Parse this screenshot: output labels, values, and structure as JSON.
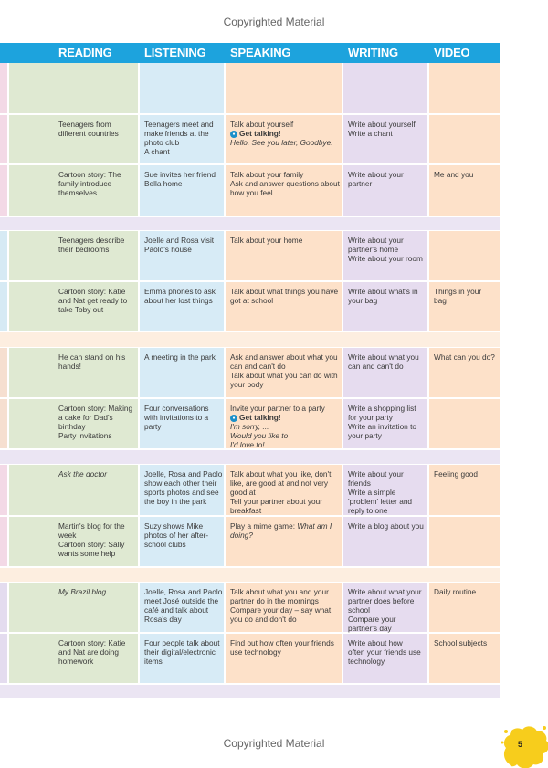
{
  "watermark": "Copyrighted Material",
  "headers": [
    "READING",
    "LISTENING",
    "SPEAKING",
    "WRITING",
    "VIDEO"
  ],
  "page_number": "5",
  "colors": {
    "header": "#1da3dd",
    "reading": "#dfe9d2",
    "listening": "#d7ebf6",
    "speaking": "#fde1c9",
    "writing": "#e6dcef",
    "video": "#fde1c9",
    "separator_lavender": "#ebe5f3",
    "separator_peach": "#fdeee0",
    "badge": "#f7cd1c"
  },
  "rows": [
    {
      "reading": [],
      "listening": [],
      "speaking": [],
      "writing": [],
      "video": []
    },
    {
      "reading": [
        "Teenagers from",
        "different countries"
      ],
      "listening": [
        "Teenagers meet and",
        "make friends at the",
        "photo club",
        "A chant"
      ],
      "speaking": [
        "Talk about yourself"
      ],
      "speaking_gt": "Get talking!",
      "speaking_gt_line": "Hello, See you later, Goodbye.",
      "writing": [
        "Write about yourself",
        "Write a chant"
      ],
      "video": []
    },
    {
      "reading": [
        "Cartoon story: The",
        "family introduce",
        "themselves"
      ],
      "listening": [
        "Sue invites her friend",
        "Bella home"
      ],
      "speaking": [
        "Talk about your family",
        "Ask and answer questions about",
        "how you feel"
      ],
      "writing": [
        "Write about your",
        "partner"
      ],
      "video": [
        "Me and you"
      ]
    },
    {
      "reading": [
        "Teenagers describe",
        "their bedrooms"
      ],
      "listening": [
        "Joelle and Rosa visit",
        "Paolo's house"
      ],
      "speaking": [
        "Talk about your home"
      ],
      "writing": [
        "Write about your",
        "partner's home",
        "Write about your room"
      ],
      "video": []
    },
    {
      "reading": [
        "Cartoon story: Katie",
        "and Nat get ready to",
        "take Toby out"
      ],
      "listening": [
        "Emma phones to ask",
        "about her lost things"
      ],
      "speaking": [
        "Talk about what things you have",
        "got at school"
      ],
      "writing": [
        "Write about what's in",
        "your bag"
      ],
      "video": [
        "Things in your",
        "bag"
      ]
    },
    {
      "reading": [
        "He can stand on his",
        "hands!"
      ],
      "listening": [
        "A meeting in the park"
      ],
      "speaking": [
        "Ask and answer about what you",
        "can and can't do",
        "Talk about what you can do with",
        "your body"
      ],
      "writing": [
        "Write about what you",
        "can and can't do"
      ],
      "video": [
        "What can you do?"
      ]
    },
    {
      "reading": [
        "Cartoon story: Making",
        "a cake for Dad's",
        "birthday",
        "Party invitations"
      ],
      "listening": [
        "Four conversations",
        "with invitations to a",
        "party"
      ],
      "speaking": [
        "Invite your partner to a party"
      ],
      "speaking_gt": "Get talking!",
      "speaking_gt_lines": [
        "I'm sorry, ...",
        "Would you like to",
        "I'd love to!"
      ],
      "writing": [
        "Write a shopping list",
        "for your party",
        "Write an invitation to",
        "your party"
      ],
      "video": []
    },
    {
      "reading_italic": [
        "Ask the doctor"
      ],
      "listening": [
        "Joelle, Rosa and Paolo",
        "show each other their",
        "sports photos and see",
        "the boy in the park"
      ],
      "speaking": [
        "Talk about what you like, don't",
        "like, are good at and not very",
        "good at",
        "Tell your partner about your",
        "breakfast"
      ],
      "writing": [
        "Write about your",
        "friends",
        "Write a simple",
        "'problem' letter and",
        "reply to one"
      ],
      "video": [
        "Feeling good"
      ]
    },
    {
      "reading": [
        "Martin's blog for the",
        "week",
        "Cartoon story: Sally",
        "wants some help"
      ],
      "listening": [
        "Suzy shows Mike",
        "photos of her after-",
        "school clubs"
      ],
      "speaking_prefix": "Play a mime game: ",
      "speaking_italic_tail": "What am I",
      "speaking_italic": [
        "doing?"
      ],
      "writing": [
        "Write a blog about you"
      ],
      "video": []
    },
    {
      "reading_italic": [
        "My Brazil blog"
      ],
      "listening": [
        "Joelle, Rosa and Paolo",
        "meet José outside the",
        "café and talk about",
        "Rosa's day"
      ],
      "speaking": [
        "Talk about what you and your",
        "partner do in the mornings",
        "Compare your day – say what",
        "you do and don't do"
      ],
      "writing": [
        "Write about what your",
        "partner does before",
        "school",
        "Compare your",
        "partner's day"
      ],
      "video": [
        "Daily routine"
      ]
    },
    {
      "reading": [
        "Cartoon story: Katie",
        "and Nat are doing",
        "homework"
      ],
      "listening": [
        "Four people talk about",
        "their digital/electronic",
        "items"
      ],
      "speaking": [
        "Find out how often your friends",
        "use technology"
      ],
      "writing": [
        "Write about how",
        "often your friends use",
        "technology"
      ],
      "video": [
        "School subjects"
      ]
    }
  ]
}
